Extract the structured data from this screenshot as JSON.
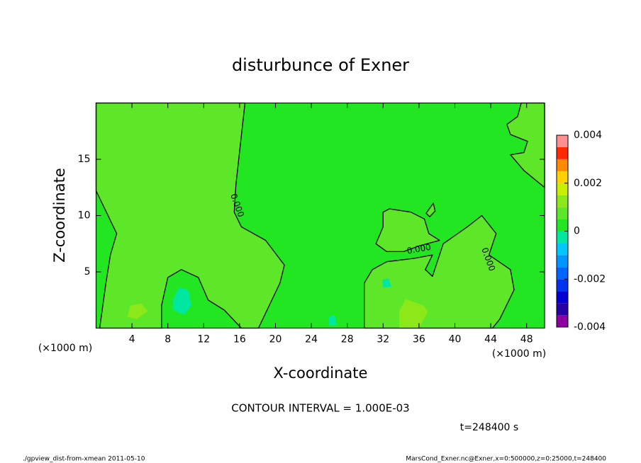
{
  "chart_data": {
    "type": "contour",
    "title": "disturbunce of Exner",
    "xlabel": "X-coordinate",
    "ylabel": "Z-coordinate",
    "x_unit": "(×1000 m)",
    "y_unit": "(×1000 m)",
    "interval_text": "CONTOUR INTERVAL = 1.000E-03",
    "time_text": "t=248400 s",
    "footer_left": "./gpview_dist-from-xmean  2011-05-10",
    "footer_right": "MarsCond_Exner.nc@Exner,x=0:500000,z=0:25000,t=248400",
    "xlim": [
      0,
      50
    ],
    "ylim": [
      0,
      20
    ],
    "xticks": [
      4,
      8,
      12,
      16,
      20,
      24,
      28,
      32,
      36,
      40,
      44,
      48
    ],
    "yticks": [
      5,
      10,
      15
    ],
    "levels": [
      -0.004,
      -0.0035,
      -0.003,
      -0.0025,
      -0.002,
      -0.0015,
      -0.001,
      -0.0005,
      0,
      0.0005,
      0.001,
      0.0015,
      0.002,
      0.0025,
      0.003,
      0.0035,
      0.004
    ],
    "colors": [
      "#8c00a0",
      "#2800a8",
      "#0000d2",
      "#0032f0",
      "#0064ff",
      "#0096ff",
      "#00c8ff",
      "#00e8a0",
      "#22e622",
      "#5ee628",
      "#8ce818",
      "#c8f000",
      "#ffd200",
      "#ff8c00",
      "#ff2800",
      "#ff9090"
    ],
    "cticks": [
      -0.004,
      -0.002,
      0,
      0.002,
      0.004
    ],
    "regions": [
      {
        "value": 0,
        "contour": false,
        "x": [
          0,
          50,
          50,
          0
        ],
        "y": [
          0,
          0,
          20,
          20
        ]
      },
      {
        "value": 0.0005,
        "contour": true,
        "x": [
          0,
          16.6,
          15.6,
          15.4,
          16.2,
          18.9,
          21,
          20.5,
          18.1,
          16.2,
          14.3,
          12.5,
          11.4,
          9.5,
          8,
          7.3,
          7.3,
          0.4,
          1.1,
          1.6,
          2.3,
          0
        ],
        "y": [
          20,
          20,
          12.8,
          10.3,
          9,
          7.8,
          5.6,
          4,
          0,
          0,
          1.6,
          2.5,
          4.5,
          5.2,
          4.5,
          2,
          0,
          0,
          4,
          6.5,
          8.4,
          12.2
        ]
      },
      {
        "value": 0.0005,
        "contour": true,
        "x": [
          29.9,
          29.9,
          30.8,
          32.4,
          35.5,
          37.5,
          36.7,
          37.5,
          38.7,
          41.4,
          43,
          44.6,
          43.8,
          46.2,
          46.6,
          45,
          44.2
        ],
        "y": [
          0,
          4,
          5.2,
          5.9,
          6.2,
          6.5,
          5.2,
          4.6,
          7.5,
          9,
          10,
          8.4,
          6.5,
          5.2,
          3.4,
          0.8,
          0
        ]
      },
      {
        "value": 0.0005,
        "contour": true,
        "x": [
          32,
          32.7,
          35.1,
          36.6,
          37.1,
          38.3,
          36,
          34.3,
          32.4,
          31.2,
          32
        ],
        "y": [
          10.3,
          10.6,
          10.3,
          9.7,
          8.4,
          7.8,
          7.3,
          6.8,
          6.8,
          7.5,
          9
        ]
      },
      {
        "value": 0.0005,
        "contour": true,
        "x": [
          36.8,
          37.6,
          37.8,
          37.2,
          36.8
        ],
        "y": [
          10.2,
          11.1,
          10.4,
          9.9,
          10.2
        ]
      },
      {
        "value": 0.0005,
        "contour": true,
        "x": [
          47.4,
          47,
          45.8,
          46.2,
          48.1,
          47.7,
          46.2,
          47.7,
          50,
          50
        ],
        "y": [
          20,
          18.8,
          18.1,
          17.2,
          16.6,
          15.6,
          15.4,
          14,
          12.5,
          20
        ]
      },
      {
        "value": 0.001,
        "contour": false,
        "x": [
          3.5,
          4.5,
          5.2,
          5.8,
          5.0,
          3.8
        ],
        "y": [
          1.0,
          0.8,
          1.2,
          1.5,
          2.2,
          2.0
        ]
      },
      {
        "value": 0.001,
        "contour": false,
        "x": [
          33.8,
          36.0,
          37.0,
          36.5,
          34.5,
          33.8
        ],
        "y": [
          0,
          0,
          1.5,
          2.0,
          2.6,
          1.5
        ]
      },
      {
        "value": -0.0005,
        "contour": false,
        "x": [
          8.6,
          9.8,
          10.6,
          10.3,
          9.2,
          8.6
        ],
        "y": [
          1.6,
          1.2,
          2.0,
          3.4,
          3.6,
          2.6
        ]
      },
      {
        "value": -0.0005,
        "contour": false,
        "x": [
          26.0,
          26.8,
          26.6,
          25.9
        ],
        "y": [
          0.2,
          0.3,
          1.2,
          1.0
        ]
      },
      {
        "value": -0.0005,
        "contour": false,
        "x": [
          32.0,
          32.9,
          32.6,
          31.9
        ],
        "y": [
          3.6,
          3.7,
          4.4,
          4.3
        ]
      }
    ],
    "contour_labels": [
      {
        "text": "0.000",
        "x": 15.7,
        "y": 10.9
      },
      {
        "text": "0.000",
        "x": 36.0,
        "y": 7.0
      },
      {
        "text": "0.000",
        "x": 43.7,
        "y": 6.1
      }
    ]
  }
}
